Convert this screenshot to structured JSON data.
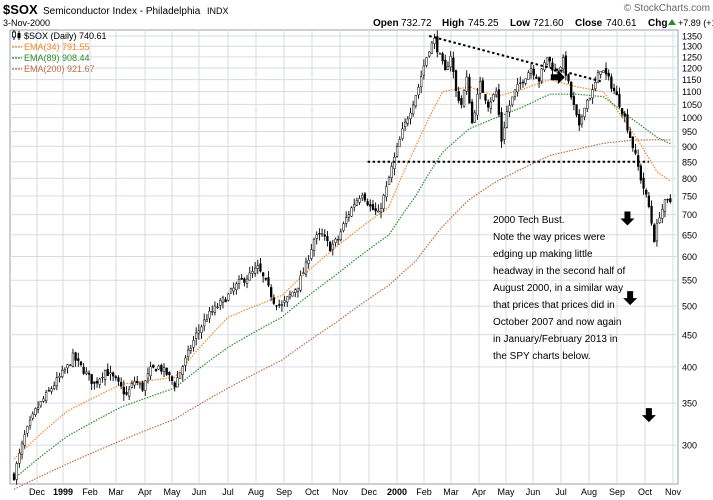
{
  "header": {
    "symbol": "$SOX",
    "name": "Semiconductor Index - Philadelphia",
    "exchange": "INDX",
    "date": "3-Nov-2000",
    "watermark": "© StockCharts.com",
    "open_label": "Open",
    "open": "732.72",
    "high_label": "High",
    "high": "745.25",
    "low_label": "Low",
    "low": "721.60",
    "close_label": "Close",
    "close": "740.61",
    "chg_label": "Chg",
    "chg": "+7.89 (+1.08%)",
    "chg_icon": "up-triangle-icon"
  },
  "legend": [
    {
      "label": "$SOX (Daily) 740.61",
      "color": "#000000",
      "marker": "candlestick-icon"
    },
    {
      "label": "EMA(34) 791.55",
      "color": "#f08a2a",
      "marker": "dash"
    },
    {
      "label": "EMA(89) 908.44",
      "color": "#2e8b2e",
      "marker": "dash"
    },
    {
      "label": "EMA(200) 921.67",
      "color": "#b8704a",
      "marker": "dash"
    }
  ],
  "annotation": {
    "lines": [
      "2000 Tech Bust.",
      "Note the way prices were",
      "edging up making little",
      "headway in the second half of",
      "August 2000, in a similar way",
      "that prices that prices did in",
      "October 2007 and now again",
      "in January/February 2013 in",
      "the SPY charts below."
    ]
  },
  "chart_data": {
    "type": "line",
    "scale": "log",
    "price_style": "candlestick",
    "ylim": [
      260,
      1380
    ],
    "y_ticks": [
      300,
      350,
      400,
      450,
      500,
      550,
      600,
      650,
      700,
      750,
      800,
      850,
      900,
      950,
      1000,
      1050,
      1100,
      1150,
      1200,
      1250,
      1300,
      1350
    ],
    "x_ticks": [
      "Dec",
      "1999",
      "Feb",
      "Mar",
      "Apr",
      "May",
      "Jun",
      "Jul",
      "Aug",
      "Sep",
      "Oct",
      "Nov",
      "Dec",
      "2000",
      "Feb",
      "Mar",
      "Apr",
      "May",
      "Jun",
      "Jul",
      "Aug",
      "Sep",
      "Oct",
      "Nov"
    ],
    "grid": true,
    "legend_position": "top-left",
    "price_path": [
      [
        0,
        268
      ],
      [
        4,
        310
      ],
      [
        8,
        340
      ],
      [
        12,
        360
      ],
      [
        16,
        380
      ],
      [
        20,
        400
      ],
      [
        22,
        415
      ],
      [
        26,
        395
      ],
      [
        30,
        375
      ],
      [
        34,
        395
      ],
      [
        38,
        380
      ],
      [
        42,
        360
      ],
      [
        45,
        380
      ],
      [
        48,
        370
      ],
      [
        51,
        395
      ],
      [
        54,
        400
      ],
      [
        57,
        390
      ],
      [
        60,
        375
      ],
      [
        64,
        410
      ],
      [
        68,
        450
      ],
      [
        72,
        480
      ],
      [
        76,
        500
      ],
      [
        80,
        520
      ],
      [
        84,
        545
      ],
      [
        88,
        560
      ],
      [
        91,
        575
      ],
      [
        94,
        545
      ],
      [
        97,
        510
      ],
      [
        100,
        500
      ],
      [
        103,
        520
      ],
      [
        106,
        540
      ],
      [
        109,
        580
      ],
      [
        112,
        640
      ],
      [
        115,
        650
      ],
      [
        118,
        620
      ],
      [
        121,
        640
      ],
      [
        124,
        690
      ],
      [
        127,
        730
      ],
      [
        130,
        760
      ],
      [
        133,
        720
      ],
      [
        136,
        700
      ],
      [
        139,
        770
      ],
      [
        142,
        860
      ],
      [
        145,
        950
      ],
      [
        148,
        1030
      ],
      [
        151,
        1120
      ],
      [
        153,
        1210
      ],
      [
        155,
        1290
      ],
      [
        157,
        1330
      ],
      [
        159,
        1250
      ],
      [
        161,
        1180
      ],
      [
        163,
        1260
      ],
      [
        165,
        1100
      ],
      [
        167,
        1050
      ],
      [
        169,
        1150
      ],
      [
        171,
        980
      ],
      [
        174,
        1130
      ],
      [
        177,
        1050
      ],
      [
        180,
        1100
      ],
      [
        182,
        920
      ],
      [
        184,
        1020
      ],
      [
        187,
        1100
      ],
      [
        190,
        1150
      ],
      [
        193,
        1200
      ],
      [
        196,
        1150
      ],
      [
        199,
        1250
      ],
      [
        202,
        1180
      ],
      [
        205,
        1230
      ],
      [
        208,
        1080
      ],
      [
        211,
        960
      ],
      [
        213,
        1050
      ],
      [
        216,
        1100
      ],
      [
        219,
        1200
      ],
      [
        222,
        1150
      ],
      [
        225,
        1080
      ],
      [
        228,
        1000
      ],
      [
        231,
        900
      ],
      [
        234,
        800
      ],
      [
        237,
        720
      ],
      [
        239,
        640
      ],
      [
        241,
        700
      ],
      [
        243,
        730
      ],
      [
        245,
        735
      ]
    ],
    "series": [
      {
        "name": "EMA(34)",
        "values": [
          [
            0,
            285
          ],
          [
            20,
            340
          ],
          [
            40,
            375
          ],
          [
            60,
            385
          ],
          [
            80,
            480
          ],
          [
            100,
            520
          ],
          [
            120,
            620
          ],
          [
            140,
            720
          ],
          [
            150,
            900
          ],
          [
            160,
            1100
          ],
          [
            170,
            1120
          ],
          [
            180,
            1080
          ],
          [
            190,
            1110
          ],
          [
            200,
            1150
          ],
          [
            210,
            1120
          ],
          [
            220,
            1100
          ],
          [
            230,
            960
          ],
          [
            240,
            820
          ],
          [
            245,
            791.55
          ]
        ]
      },
      {
        "name": "EMA(89)",
        "values": [
          [
            0,
            265
          ],
          [
            20,
            310
          ],
          [
            40,
            345
          ],
          [
            60,
            370
          ],
          [
            80,
            430
          ],
          [
            100,
            480
          ],
          [
            120,
            560
          ],
          [
            140,
            650
          ],
          [
            150,
            750
          ],
          [
            160,
            880
          ],
          [
            170,
            960
          ],
          [
            180,
            1000
          ],
          [
            190,
            1040
          ],
          [
            200,
            1090
          ],
          [
            210,
            1090
          ],
          [
            220,
            1080
          ],
          [
            230,
            1000
          ],
          [
            240,
            930
          ],
          [
            245,
            908.44
          ]
        ]
      },
      {
        "name": "EMA(200)",
        "values": [
          [
            0,
            255
          ],
          [
            20,
            280
          ],
          [
            40,
            305
          ],
          [
            60,
            330
          ],
          [
            80,
            370
          ],
          [
            100,
            410
          ],
          [
            120,
            470
          ],
          [
            140,
            540
          ],
          [
            150,
            590
          ],
          [
            160,
            670
          ],
          [
            170,
            740
          ],
          [
            180,
            790
          ],
          [
            190,
            830
          ],
          [
            200,
            870
          ],
          [
            210,
            890
          ],
          [
            220,
            910
          ],
          [
            230,
            920
          ],
          [
            240,
            922
          ],
          [
            245,
            921.67
          ]
        ]
      }
    ],
    "trendlines": [
      {
        "style": "dotted",
        "points": [
          [
            155,
            1350
          ],
          [
            220,
            1140
          ]
        ]
      },
      {
        "style": "dotted",
        "points": [
          [
            132,
            850
          ],
          [
            237,
            850
          ]
        ]
      }
    ],
    "markers": [
      {
        "shape": "arrow-right-icon",
        "x": 203,
        "y": 1160
      },
      {
        "shape": "arrow-down-icon",
        "x": 229,
        "y": 690
      },
      {
        "shape": "arrow-down-icon",
        "x": 230,
        "y": 515
      },
      {
        "shape": "arrow-down-icon",
        "x": 237,
        "y": 335
      }
    ]
  }
}
